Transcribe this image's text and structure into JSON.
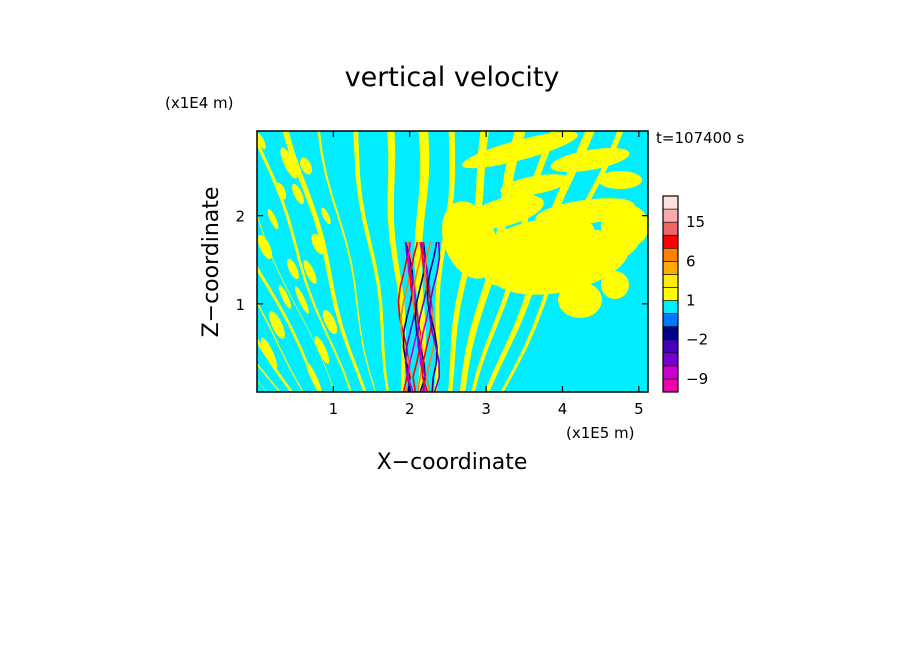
{
  "chart_data": {
    "type": "heatmap",
    "title": "vertical velocity",
    "xlabel": "X−coordinate",
    "ylabel": "Z−coordinate",
    "x_unit": "(x1E5 m)",
    "y_unit": "(x1E4 m)",
    "time_label": "t=107400 s",
    "xlim": [
      0,
      5.12
    ],
    "ylim": [
      0,
      2.96
    ],
    "x_ticks": [
      1,
      2,
      3,
      4,
      5
    ],
    "y_ticks": [
      1,
      2
    ],
    "x_tick_labels": [
      "1",
      "2",
      "3",
      "4",
      "5"
    ],
    "y_tick_labels": [
      "1",
      "2"
    ],
    "grid": false,
    "field": {
      "background_color": "#00EEFF",
      "band_color": "#FFFF00",
      "jet_center_x": 2.1,
      "jet_colors": [
        "#FF0000",
        "#FF7F00",
        "#000088",
        "#7700CC",
        "#CC00CC"
      ]
    },
    "colorbar": {
      "levels": [
        -12,
        -9,
        -6,
        -3,
        -2,
        -1,
        0,
        1,
        2,
        3,
        6,
        9,
        12,
        15,
        18,
        21
      ],
      "colors": [
        "#EE00AA",
        "#CC00CC",
        "#7700CC",
        "#4400BB",
        "#000088",
        "#0077FF",
        "#00EEFF",
        "#FFFF00",
        "#FFEE00",
        "#FFAA00",
        "#FF7F00",
        "#FF0000",
        "#EE6666",
        "#FFAAAA",
        "#FFE0E0"
      ],
      "tick_labels": [
        {
          "label": "15",
          "value": 15
        },
        {
          "label": "6",
          "value": 6
        },
        {
          "label": "1",
          "value": 1
        },
        {
          "label": "−2",
          "value": -2
        },
        {
          "label": "−9",
          "value": -9
        }
      ]
    }
  }
}
